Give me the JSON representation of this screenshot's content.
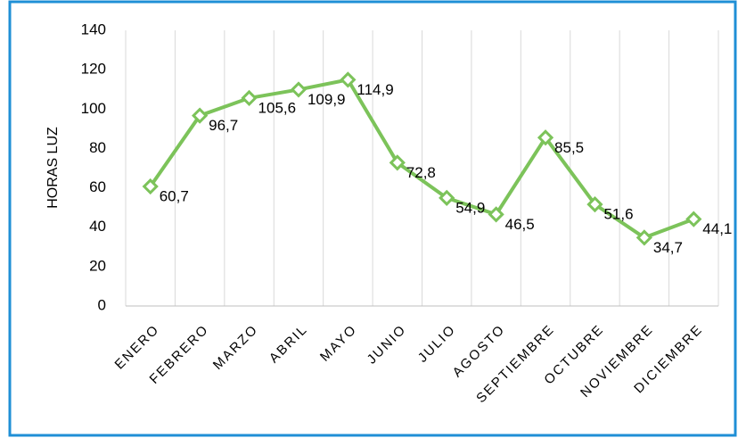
{
  "chart_data": {
    "type": "line",
    "y_label": "HORAS LUZ",
    "categories": [
      "ENERO",
      "FEBRERO",
      "MARZO",
      "ABRIL",
      "MAYO",
      "JUNIO",
      "JULIO",
      "AGOSTO",
      "SEPTIEMBRE",
      "OCTUBRE",
      "NOVIEMBRE",
      "DICIEMBRE"
    ],
    "values": [
      60.7,
      96.7,
      105.6,
      109.9,
      114.9,
      72.8,
      54.9,
      46.5,
      85.5,
      51.6,
      34.7,
      44.1
    ],
    "value_labels": [
      "60,7",
      "96,7",
      "105,6",
      "109,9",
      "114,9",
      "72,8",
      "54,9",
      "46,5",
      "85,5",
      "51,6",
      "34,7",
      "44,1"
    ],
    "color": "#7cc35a",
    "ylim": [
      0,
      140
    ],
    "yticks": [
      0,
      20,
      40,
      60,
      80,
      100,
      120,
      140
    ],
    "grid": true
  }
}
